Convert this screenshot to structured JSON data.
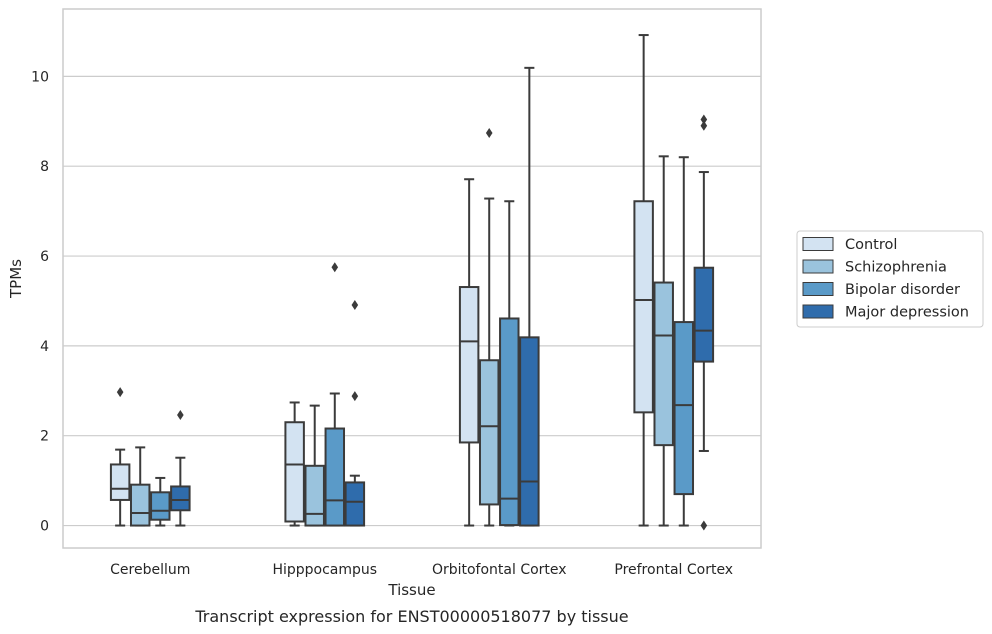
{
  "caption": "Transcript expression for ENST00000518077 by tissue",
  "chart_data": {
    "type": "boxplot",
    "xlabel": "Tissue",
    "ylabel": "TPMs",
    "ylim": [
      -0.5,
      11.5
    ],
    "yticks": [
      0,
      2,
      4,
      6,
      8,
      10
    ],
    "grid": "horizontal",
    "legend_position": "right",
    "categories": [
      "Cerebellum",
      "Hipppocampus",
      "Orbitofontal Cortex",
      "Prefrontal Cortex"
    ],
    "series": [
      {
        "name": "Control",
        "color": "#d3e3f2",
        "boxes": [
          {
            "whislo": 0.0,
            "q1": 0.57,
            "med": 0.82,
            "q3": 1.36,
            "whishi": 1.69,
            "fliers": [
              2.97
            ]
          },
          {
            "whislo": 0.0,
            "q1": 0.09,
            "med": 1.36,
            "q3": 2.3,
            "whishi": 2.74,
            "fliers": []
          },
          {
            "whislo": 0.0,
            "q1": 1.85,
            "med": 4.1,
            "q3": 5.31,
            "whishi": 7.71,
            "fliers": []
          },
          {
            "whislo": 0.0,
            "q1": 2.52,
            "med": 5.02,
            "q3": 7.22,
            "whishi": 10.92,
            "fliers": []
          }
        ]
      },
      {
        "name": "Schizophrenia",
        "color": "#9ac3dd",
        "boxes": [
          {
            "whislo": 0.0,
            "q1": 0.0,
            "med": 0.28,
            "q3": 0.91,
            "whishi": 1.74,
            "fliers": []
          },
          {
            "whislo": 0.0,
            "q1": 0.0,
            "med": 0.26,
            "q3": 1.33,
            "whishi": 2.67,
            "fliers": []
          },
          {
            "whislo": 0.0,
            "q1": 0.47,
            "med": 2.21,
            "q3": 3.68,
            "whishi": 7.28,
            "fliers": [
              8.74
            ]
          },
          {
            "whislo": 0.0,
            "q1": 1.79,
            "med": 4.23,
            "q3": 5.41,
            "whishi": 8.22,
            "fliers": []
          }
        ]
      },
      {
        "name": "Bipolar disorder",
        "color": "#5a9ac8",
        "boxes": [
          {
            "whislo": 0.0,
            "q1": 0.13,
            "med": 0.33,
            "q3": 0.74,
            "whishi": 1.06,
            "fliers": []
          },
          {
            "whislo": 0.0,
            "q1": 0.0,
            "med": 0.56,
            "q3": 2.16,
            "whishi": 2.94,
            "fliers": [
              5.75
            ]
          },
          {
            "whislo": 0.0,
            "q1": 0.01,
            "med": 0.6,
            "q3": 4.61,
            "whishi": 7.22,
            "fliers": []
          },
          {
            "whislo": 0.0,
            "q1": 0.7,
            "med": 2.68,
            "q3": 4.53,
            "whishi": 8.2,
            "fliers": []
          }
        ]
      },
      {
        "name": "Major depression",
        "color": "#2f6cac",
        "boxes": [
          {
            "whislo": 0.0,
            "q1": 0.34,
            "med": 0.57,
            "q3": 0.87,
            "whishi": 1.51,
            "fliers": [
              2.46
            ]
          },
          {
            "whislo": 0.0,
            "q1": 0.0,
            "med": 0.53,
            "q3": 0.96,
            "whishi": 1.11,
            "fliers": [
              2.88,
              4.91
            ]
          },
          {
            "whislo": 0.0,
            "q1": 0.0,
            "med": 0.98,
            "q3": 4.19,
            "whishi": 10.19,
            "fliers": []
          },
          {
            "whislo": 1.66,
            "q1": 3.65,
            "med": 4.34,
            "q3": 5.74,
            "whishi": 7.87,
            "fliers": [
              9.04,
              8.9,
              0.0
            ]
          }
        ]
      }
    ]
  }
}
